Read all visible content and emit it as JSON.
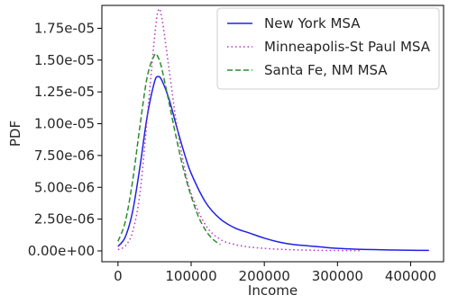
{
  "chart_data": {
    "type": "line",
    "title": "",
    "xlabel": "Income",
    "ylabel": "PDF",
    "xlim": [
      -22000,
      445000
    ],
    "ylim": [
      -8.5e-07,
      1.93e-05
    ],
    "x_ticks": [
      0,
      100000,
      200000,
      300000,
      400000
    ],
    "x_tick_labels": [
      "0",
      "100000",
      "200000",
      "300000",
      "400000"
    ],
    "y_ticks": [
      0,
      2.5e-06,
      5e-06,
      7.5e-06,
      1e-05,
      1.25e-05,
      1.5e-05,
      1.75e-05
    ],
    "y_tick_labels": [
      "0.00e+00",
      "2.50e-06",
      "5.00e-06",
      "7.50e-06",
      "1.00e-05",
      "1.25e-05",
      "1.50e-05",
      "1.75e-05"
    ],
    "grid": false,
    "legend_position": "top-right",
    "series": [
      {
        "name": "New York MSA",
        "color": "#2020e8",
        "style": "solid",
        "x": [
          0,
          10000,
          20000,
          30000,
          40000,
          50000,
          55000,
          60000,
          70000,
          80000,
          90000,
          100000,
          120000,
          140000,
          160000,
          180000,
          200000,
          220000,
          240000,
          260000,
          280000,
          300000,
          350000,
          400000,
          425000
        ],
        "y": [
          3.5e-07,
          1.1e-06,
          3.1e-06,
          6.6e-06,
          1.06e-05,
          1.33e-05,
          1.37e-05,
          1.34e-05,
          1.19e-05,
          9.8e-06,
          7.8e-06,
          6.1e-06,
          3.8e-06,
          2.5e-06,
          1.8e-06,
          1.4e-06,
          1e-06,
          7e-07,
          5e-07,
          4e-07,
          3e-07,
          2e-07,
          1e-07,
          5e-08,
          4e-08
        ]
      },
      {
        "name": "Minneapolis-St Paul MSA",
        "color": "#c030c0",
        "style": "dotted",
        "x": [
          0,
          10000,
          20000,
          30000,
          40000,
          50000,
          55000,
          60000,
          70000,
          80000,
          90000,
          100000,
          120000,
          140000,
          160000,
          180000,
          200000,
          220000,
          240000,
          260000,
          280000,
          300000,
          330000
        ],
        "y": [
          1e-07,
          4e-07,
          1.5e-06,
          4.5e-06,
          1.05e-05,
          1.68e-05,
          1.89e-05,
          1.83e-05,
          1.42e-05,
          1e-05,
          6.8e-06,
          4.5e-06,
          2e-06,
          9e-07,
          5e-07,
          3e-07,
          2e-07,
          1.3e-07,
          9e-08,
          6e-08,
          4e-08,
          3e-08,
          2e-08
        ]
      },
      {
        "name": "Santa Fe, NM MSA",
        "color": "#2e8b2e",
        "style": "dashed",
        "x": [
          0,
          10000,
          20000,
          30000,
          40000,
          50000,
          55000,
          60000,
          70000,
          80000,
          90000,
          100000,
          110000,
          120000,
          130000,
          140000
        ],
        "y": [
          7.5e-07,
          2.3e-06,
          5.5e-06,
          9.8e-06,
          1.37e-05,
          1.54e-05,
          1.52e-05,
          1.43e-05,
          1.16e-05,
          8.8e-06,
          6.3e-06,
          4.3e-06,
          2.7e-06,
          1.6e-06,
          9e-07,
          5e-07
        ]
      }
    ]
  }
}
